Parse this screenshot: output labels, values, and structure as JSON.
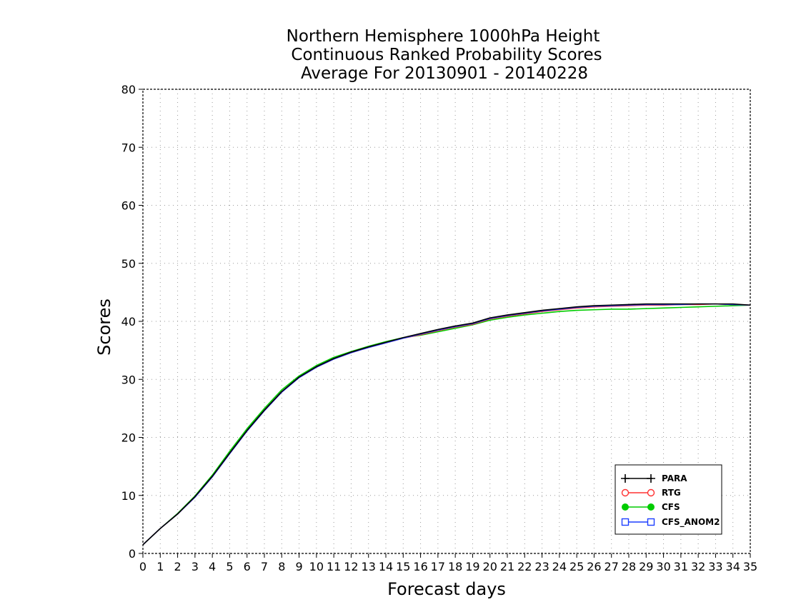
{
  "chart_data": {
    "type": "line",
    "title": [
      "Northern Hemisphere 1000hPa Height",
      "Continuous Ranked Probability Scores",
      "Average For 20130901 - 20140228"
    ],
    "xlabel": "Forecast days",
    "ylabel": "Scores",
    "xlim": [
      0,
      35
    ],
    "ylim": [
      0,
      80
    ],
    "xticks": [
      0,
      1,
      2,
      3,
      4,
      5,
      6,
      7,
      8,
      9,
      10,
      11,
      12,
      13,
      14,
      15,
      16,
      17,
      18,
      19,
      20,
      21,
      22,
      23,
      24,
      25,
      26,
      27,
      28,
      29,
      30,
      31,
      32,
      33,
      34,
      35
    ],
    "yticks": [
      0,
      10,
      20,
      30,
      40,
      50,
      60,
      70,
      80
    ],
    "grid": true,
    "legend_position": "bottom-right",
    "series": [
      {
        "name": "PARA",
        "color": "#000000",
        "marker": "plus",
        "x": [
          0,
          1,
          2,
          3,
          4,
          5,
          6,
          7,
          8,
          9,
          10,
          11,
          12,
          13,
          14,
          15,
          16,
          17,
          18,
          19,
          20,
          21,
          22,
          23,
          24,
          25,
          26,
          27,
          28,
          29,
          30,
          31,
          32,
          33,
          34,
          35
        ],
        "y": [
          1.5,
          4.3,
          6.8,
          9.8,
          13.3,
          17.3,
          21.2,
          24.7,
          27.9,
          30.4,
          32.2,
          33.6,
          34.7,
          35.6,
          36.4,
          37.2,
          37.9,
          38.6,
          39.2,
          39.7,
          40.6,
          41.1,
          41.5,
          41.9,
          42.2,
          42.5,
          42.7,
          42.8,
          42.9,
          43.0,
          43.0,
          43.0,
          43.0,
          43.0,
          43.0,
          42.8
        ]
      },
      {
        "name": "RTG",
        "color": "#ff3030",
        "marker": "circle-open",
        "x": [
          0,
          1,
          2,
          3,
          4,
          5,
          6,
          7,
          8,
          9,
          10,
          11,
          12,
          13,
          14,
          15,
          16,
          17,
          18,
          19,
          20,
          21,
          22,
          23,
          24,
          25,
          26,
          27,
          28,
          29,
          30,
          31,
          32,
          33,
          34,
          35
        ],
        "y": [
          1.5,
          4.3,
          6.8,
          9.7,
          13.2,
          17.2,
          21.1,
          24.6,
          27.8,
          30.3,
          32.1,
          33.5,
          34.6,
          35.5,
          36.3,
          37.1,
          37.7,
          38.4,
          39.0,
          39.5,
          40.4,
          40.9,
          41.3,
          41.7,
          42.0,
          42.3,
          42.5,
          42.6,
          42.7,
          42.8,
          42.8,
          42.9,
          42.9,
          43.0,
          42.9,
          42.8
        ]
      },
      {
        "name": "CFS",
        "color": "#00cc00",
        "marker": "circle-filled",
        "x": [
          0,
          1,
          2,
          3,
          4,
          5,
          6,
          7,
          8,
          9,
          10,
          11,
          12,
          13,
          14,
          15,
          16,
          17,
          18,
          19,
          20,
          21,
          22,
          23,
          24,
          25,
          26,
          27,
          28,
          29,
          30,
          31,
          32,
          33,
          34,
          35
        ],
        "y": [
          1.5,
          4.3,
          6.9,
          9.9,
          13.5,
          17.6,
          21.5,
          25.0,
          28.2,
          30.6,
          32.4,
          33.8,
          34.8,
          35.7,
          36.5,
          37.2,
          37.6,
          38.2,
          38.8,
          39.4,
          40.2,
          40.7,
          41.1,
          41.4,
          41.7,
          41.9,
          42.0,
          42.1,
          42.1,
          42.2,
          42.3,
          42.4,
          42.5,
          42.6,
          42.7,
          42.8
        ]
      },
      {
        "name": "CFS_ANOM2",
        "color": "#1c3fff",
        "marker": "square-open",
        "x": [
          0,
          1,
          2,
          3,
          4,
          5,
          6,
          7,
          8,
          9,
          10,
          11,
          12,
          13,
          14,
          15,
          16,
          17,
          18,
          19,
          20,
          21,
          22,
          23,
          24,
          25,
          26,
          27,
          28,
          29,
          30,
          31,
          32,
          33,
          34,
          35
        ],
        "y": [
          1.5,
          4.3,
          6.8,
          9.7,
          13.2,
          17.2,
          21.1,
          24.6,
          27.8,
          30.3,
          32.1,
          33.5,
          34.6,
          35.5,
          36.3,
          37.1,
          37.8,
          38.5,
          39.1,
          39.6,
          40.5,
          41.0,
          41.4,
          41.8,
          42.1,
          42.4,
          42.6,
          42.7,
          42.8,
          42.9,
          42.9,
          42.9,
          43.0,
          43.0,
          42.9,
          42.8
        ]
      }
    ]
  }
}
